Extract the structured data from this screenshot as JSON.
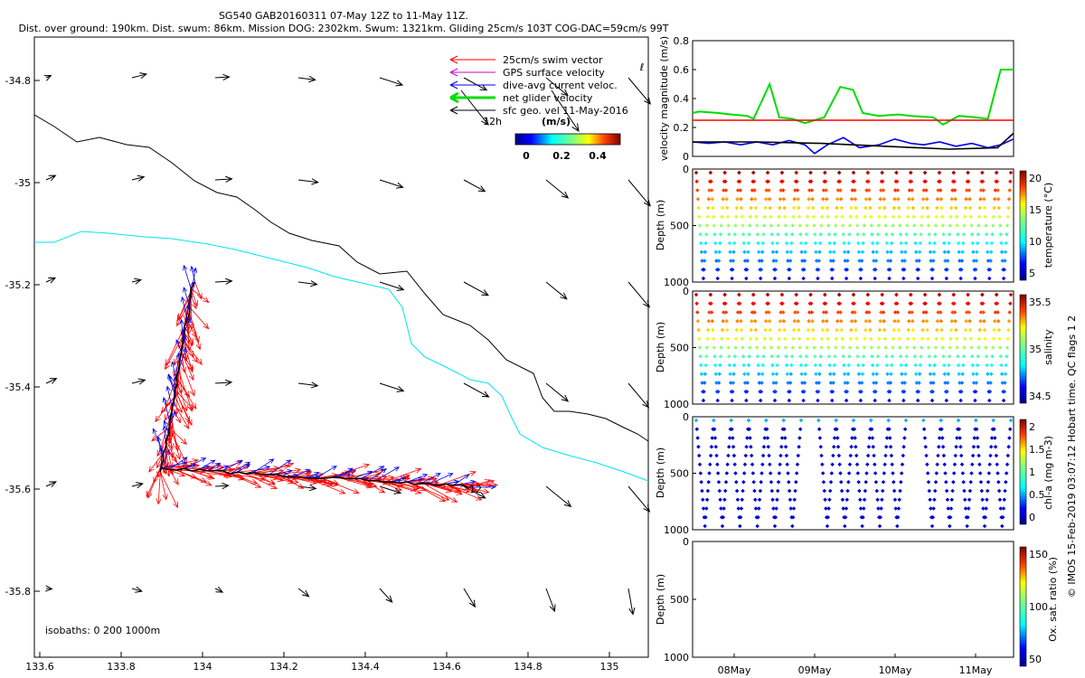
{
  "header": {
    "line1": "SG540 GAB20160311 07-May 12Z to 11-May 11Z.",
    "line2": "Dist. over ground: 190km. Dist. swum: 86km. Mission DOG: 2302km. Swum: 1321km. Gliding 25cm/s 103T COG-DAC=59cm/s 99T"
  },
  "colors": {
    "swim": "#ff0000",
    "gps": "#cc00cc",
    "dac": "#0000ee",
    "net": "#00dd00",
    "geo": "#000000",
    "isobath_deep": "#00e5ee",
    "isobath_shallow": "#000000"
  },
  "map": {
    "legend": [
      "25cm/s swim vector",
      "GPS surface velocity",
      "dive-avg current veloc.",
      "net glider velocity",
      "sfc geo. vel 11-May-2016"
    ],
    "legend_marker": "12h",
    "colorbar": {
      "unit": "(m/s)",
      "ticks": [
        "0",
        "0.2",
        "0.4"
      ]
    },
    "isobaths_text": "isobaths: 0   200  1000m",
    "dive_label": "12",
    "x_ticks": [
      "133.6",
      "133.8",
      "134",
      "134.2",
      "134.4",
      "134.6",
      "134.8",
      "135"
    ],
    "y_ticks": [
      "-34.8",
      "-35",
      "-35.2",
      "-35.4",
      "-35.6",
      "-35.8"
    ]
  },
  "chart_data": [
    {
      "type": "line",
      "id": "velocity",
      "ylabel": "velocity magnitude (m/s)",
      "ylim": [
        0,
        0.8
      ],
      "y_ticks": [
        "0",
        "0.2",
        "0.4",
        "0.6",
        "0.8"
      ],
      "series": [
        {
          "name": "net glider velocity",
          "color": "#00dd00",
          "x": [
            0,
            0.02,
            0.08,
            0.12,
            0.17,
            0.19,
            0.24,
            0.27,
            0.31,
            0.35,
            0.41,
            0.46,
            0.5,
            0.53,
            0.58,
            0.64,
            0.68,
            0.75,
            0.78,
            0.83,
            0.88,
            0.92,
            0.96,
            1.0
          ],
          "y": [
            0.3,
            0.31,
            0.3,
            0.29,
            0.28,
            0.26,
            0.5,
            0.27,
            0.26,
            0.23,
            0.27,
            0.48,
            0.46,
            0.3,
            0.28,
            0.29,
            0.28,
            0.27,
            0.22,
            0.28,
            0.27,
            0.26,
            0.6,
            0.6
          ]
        },
        {
          "name": "25cm/s swim",
          "color": "#ff0000",
          "x": [
            0,
            1
          ],
          "y": [
            0.25,
            0.25
          ]
        },
        {
          "name": "dive-avg current",
          "color": "#0000ee",
          "x": [
            0,
            0.05,
            0.1,
            0.15,
            0.2,
            0.25,
            0.3,
            0.35,
            0.38,
            0.42,
            0.47,
            0.52,
            0.58,
            0.63,
            0.68,
            0.72,
            0.77,
            0.82,
            0.87,
            0.92,
            0.96,
            1.0
          ],
          "y": [
            0.1,
            0.09,
            0.1,
            0.08,
            0.1,
            0.08,
            0.11,
            0.08,
            0.02,
            0.08,
            0.13,
            0.06,
            0.08,
            0.12,
            0.09,
            0.08,
            0.1,
            0.07,
            0.09,
            0.06,
            0.08,
            0.12
          ]
        },
        {
          "name": "sfc geo.",
          "color": "#000000",
          "x": [
            0,
            0.2,
            0.4,
            0.6,
            0.8,
            0.95,
            1.0
          ],
          "y": [
            0.1,
            0.1,
            0.09,
            0.07,
            0.05,
            0.06,
            0.16
          ]
        }
      ]
    },
    {
      "type": "scatter",
      "id": "temperature",
      "ylabel": "Depth (m)",
      "cbar_label": "temperature (°C)",
      "y_ticks": [
        "0",
        "500",
        "1000"
      ],
      "cbar_ticks": [
        "20",
        "15",
        "10",
        "5"
      ],
      "dives": 22,
      "max_depth": 1000
    },
    {
      "type": "scatter",
      "id": "salinity",
      "ylabel": "Depth (m)",
      "cbar_label": "salinity",
      "y_ticks": [
        "0",
        "500",
        "1000"
      ],
      "cbar_ticks": [
        "35.5",
        "35",
        "34.5"
      ],
      "dives": 22,
      "max_depth": 1000
    },
    {
      "type": "scatter",
      "id": "chla",
      "ylabel": "Depth (m)",
      "cbar_label": "chl-a (mg m-3)",
      "y_ticks": [
        "0",
        "500",
        "1000"
      ],
      "cbar_ticks": [
        "2",
        "1.5",
        "1",
        "0.5",
        "0"
      ],
      "dives": 18,
      "max_depth": 1000
    },
    {
      "type": "scatter",
      "id": "oxygen",
      "ylabel": "Depth (m)",
      "cbar_label": "Ox. sat. ratio (%)",
      "y_ticks": [
        "0",
        "500",
        "1000"
      ],
      "cbar_ticks": [
        "150",
        "100",
        "50"
      ],
      "dives": 0,
      "max_depth": 1000,
      "x_ticks": [
        "08May",
        "09May",
        "10May",
        "11May"
      ]
    }
  ],
  "side_note": "© IMOS 15-Feb-2019 03:07:12 Hobart time. QC flags 1  2"
}
